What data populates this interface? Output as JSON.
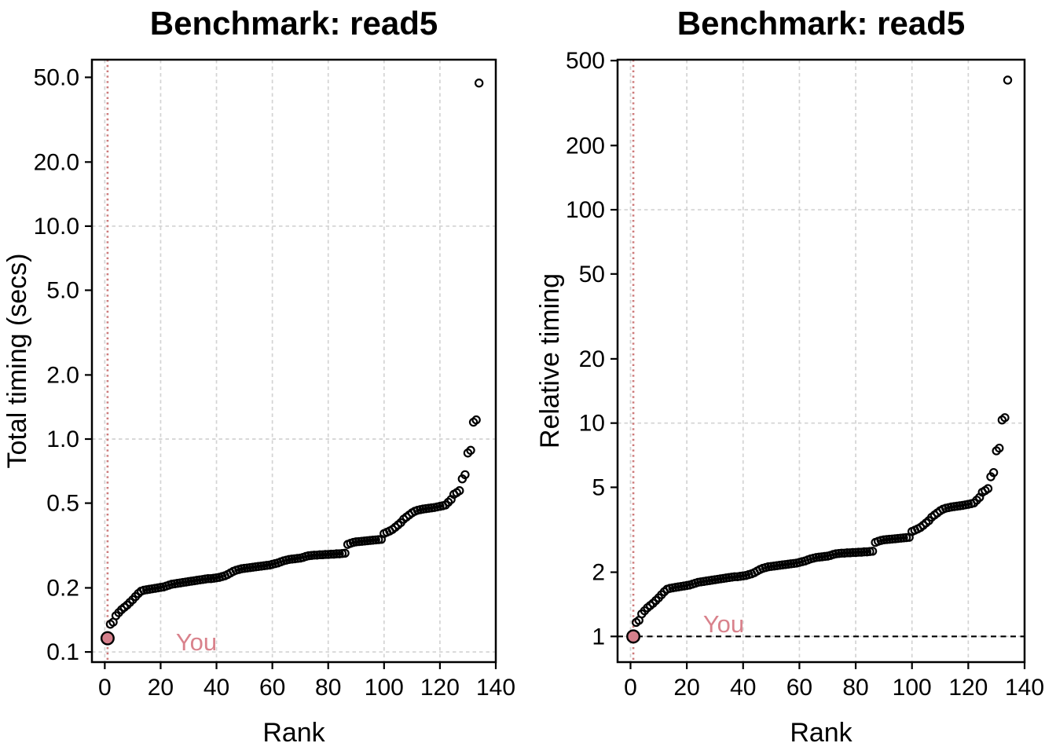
{
  "figure": {
    "background": "#ffffff",
    "description_note": "Two-panel benchmark scatter plot; right panel values are timings divided by you_value"
  },
  "colors": {
    "point_stroke": "#000000",
    "grid": "#d3d3d3",
    "box": "#000000",
    "you_point_fill": "#d6808c",
    "you_line": "#cd7a7a",
    "you_text": "#d9828c",
    "ref_line": "#000000"
  },
  "you_value": 0.116,
  "timings": [
    0.116,
    0.135,
    0.138,
    0.148,
    0.153,
    0.158,
    0.162,
    0.166,
    0.171,
    0.176,
    0.182,
    0.188,
    0.193,
    0.195,
    0.196,
    0.197,
    0.198,
    0.199,
    0.2,
    0.201,
    0.202,
    0.204,
    0.206,
    0.208,
    0.209,
    0.21,
    0.211,
    0.212,
    0.213,
    0.214,
    0.215,
    0.216,
    0.217,
    0.218,
    0.219,
    0.22,
    0.221,
    0.221,
    0.222,
    0.223,
    0.224,
    0.226,
    0.228,
    0.231,
    0.235,
    0.239,
    0.242,
    0.244,
    0.246,
    0.247,
    0.248,
    0.249,
    0.25,
    0.251,
    0.252,
    0.253,
    0.254,
    0.255,
    0.256,
    0.258,
    0.26,
    0.262,
    0.265,
    0.268,
    0.27,
    0.272,
    0.273,
    0.274,
    0.275,
    0.276,
    0.278,
    0.281,
    0.283,
    0.284,
    0.285,
    0.285,
    0.286,
    0.286,
    0.287,
    0.287,
    0.288,
    0.288,
    0.289,
    0.289,
    0.29,
    0.291,
    0.32,
    0.324,
    0.327,
    0.329,
    0.33,
    0.331,
    0.332,
    0.333,
    0.334,
    0.335,
    0.336,
    0.337,
    0.338,
    0.36,
    0.365,
    0.37,
    0.376,
    0.385,
    0.395,
    0.405,
    0.42,
    0.43,
    0.44,
    0.45,
    0.458,
    0.463,
    0.466,
    0.469,
    0.471,
    0.473,
    0.475,
    0.477,
    0.48,
    0.483,
    0.486,
    0.49,
    0.505,
    0.52,
    0.55,
    0.56,
    0.572,
    0.65,
    0.68,
    0.86,
    0.885,
    1.2,
    1.23,
    47.0
  ],
  "chart_data": [
    {
      "type": "scatter",
      "panel": "total-timing",
      "title": "Benchmark: read5",
      "xlabel": "Rank",
      "ylabel": "Total timing (secs)",
      "x_ticks": [
        0,
        20,
        40,
        60,
        80,
        100,
        120,
        140
      ],
      "x_tick_labels": [
        "0",
        "20",
        "40",
        "60",
        "80",
        "100",
        "120",
        "140"
      ],
      "y_ticks": [
        50,
        20,
        10,
        5,
        2,
        1,
        0.5,
        0.2,
        0.1
      ],
      "y_tick_labels": [
        "50.0",
        "20.0",
        "10.0",
        "5.0",
        "2.0",
        "1.0",
        "0.5",
        "0.2",
        "0.1"
      ],
      "xlim": [
        -4.6,
        140
      ],
      "ylim": [
        0.0896,
        60.5
      ],
      "log_y": true,
      "h_gridlines": [
        10,
        1,
        0.1
      ],
      "v_gridlines": [
        0,
        20,
        40,
        60,
        80,
        100,
        120,
        140
      ],
      "you_marker_line_x": 1,
      "you_label": "You",
      "ref_line_y": null,
      "series_source": "timings",
      "n_points": 134
    },
    {
      "type": "scatter",
      "panel": "relative-timing",
      "title": "Benchmark: read5",
      "xlabel": "Rank",
      "ylabel": "Relative timing",
      "x_ticks": [
        0,
        20,
        40,
        60,
        80,
        100,
        120,
        140
      ],
      "x_tick_labels": [
        "0",
        "20",
        "40",
        "60",
        "80",
        "100",
        "120",
        "140"
      ],
      "y_ticks": [
        500,
        200,
        100,
        50,
        20,
        10,
        5,
        2,
        1
      ],
      "y_tick_labels": [
        "500",
        "200",
        "100",
        "50",
        "20",
        "10",
        "5",
        "2",
        "1"
      ],
      "xlim": [
        -4.6,
        140
      ],
      "ylim": [
        0.758,
        505
      ],
      "log_y": true,
      "h_gridlines": [
        100,
        10,
        1
      ],
      "v_gridlines": [
        0,
        20,
        40,
        60,
        80,
        100,
        120,
        140
      ],
      "you_marker_line_x": 1,
      "you_label": "You",
      "ref_line_y": 1,
      "series_source": "timings / you_value",
      "n_points": 134
    }
  ]
}
